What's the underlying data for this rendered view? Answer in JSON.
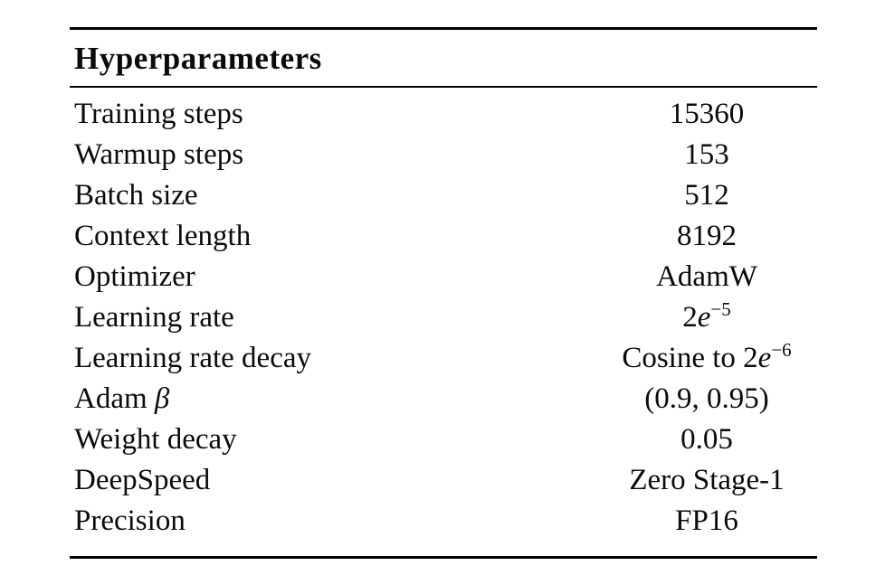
{
  "table": {
    "header": "Hyperparameters",
    "colors": {
      "text": "#0b0b0b",
      "rule": "#000000",
      "background": "#ffffff"
    },
    "rows": [
      {
        "label": [
          {
            "text": "Training steps"
          }
        ],
        "value": [
          {
            "text": "15360"
          }
        ]
      },
      {
        "label": [
          {
            "text": "Warmup steps"
          }
        ],
        "value": [
          {
            "text": "153"
          }
        ]
      },
      {
        "label": [
          {
            "text": "Batch size"
          }
        ],
        "value": [
          {
            "text": "512"
          }
        ]
      },
      {
        "label": [
          {
            "text": "Context length"
          }
        ],
        "value": [
          {
            "text": "8192"
          }
        ]
      },
      {
        "label": [
          {
            "text": "Optimizer"
          }
        ],
        "value": [
          {
            "text": "AdamW"
          }
        ]
      },
      {
        "label": [
          {
            "text": "Learning rate"
          }
        ],
        "value": [
          {
            "text": "2"
          },
          {
            "text": "e",
            "italic": true
          },
          {
            "text": "−5",
            "sup": true
          }
        ]
      },
      {
        "label": [
          {
            "text": "Learning rate decay"
          }
        ],
        "value": [
          {
            "text": "Cosine to 2"
          },
          {
            "text": "e",
            "italic": true
          },
          {
            "text": "−6",
            "sup": true
          }
        ]
      },
      {
        "label": [
          {
            "text": "Adam "
          },
          {
            "text": "β",
            "italic": true
          }
        ],
        "value": [
          {
            "text": "(0.9, 0.95)"
          }
        ]
      },
      {
        "label": [
          {
            "text": "Weight decay"
          }
        ],
        "value": [
          {
            "text": "0.05"
          }
        ]
      },
      {
        "label": [
          {
            "text": "DeepSpeed"
          }
        ],
        "value": [
          {
            "text": "Zero Stage-1"
          }
        ]
      },
      {
        "label": [
          {
            "text": "Precision"
          }
        ],
        "value": [
          {
            "text": "FP16"
          }
        ]
      }
    ]
  }
}
